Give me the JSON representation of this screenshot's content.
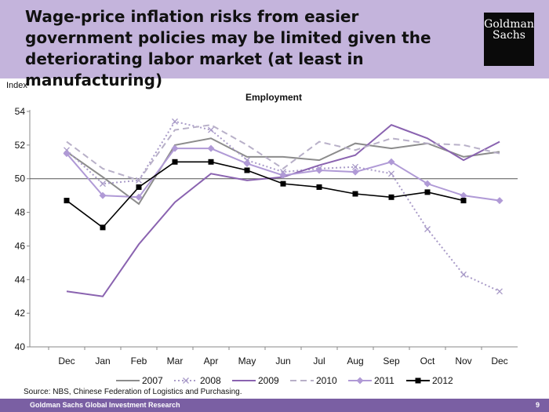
{
  "header": {
    "title": "Wage-price inflation risks from easier government policies may be limited given the deteriorating labor market (at least in manufacturing)",
    "logo_text": "Goldman Sachs"
  },
  "source": "Source: NBS, Chinese Federation of Logistics and Purchasing.",
  "footer": {
    "left": "Goldman Sachs Global Investment Research",
    "page": "9"
  },
  "colors": {
    "header_bg": "#c4b4dc",
    "footer_bg": "#7a5fa3"
  },
  "chart_data": {
    "type": "line",
    "title": "Employment",
    "ylabel": "Index",
    "xlabel": "",
    "ylim": [
      40,
      54
    ],
    "yticks": [
      40,
      42,
      44,
      46,
      48,
      50,
      52,
      54
    ],
    "reference_line": 50,
    "grid": false,
    "legend_position": "bottom",
    "categories": [
      "Dec",
      "Jan",
      "Feb",
      "Mar",
      "Apr",
      "May",
      "Jun",
      "Jul",
      "Aug",
      "Sep",
      "Oct",
      "Nov",
      "Dec"
    ],
    "series": [
      {
        "name": "2007",
        "color": "#8c8c8c",
        "dash": "solid",
        "marker": "none",
        "values": [
          51.6,
          50.1,
          48.5,
          52.0,
          52.4,
          51.3,
          51.3,
          51.1,
          52.1,
          51.8,
          52.1,
          51.3,
          51.6
        ]
      },
      {
        "name": "2008",
        "color": "#a99bc8",
        "dash": "dotted",
        "marker": "x",
        "values": [
          51.7,
          49.7,
          49.9,
          53.4,
          52.9,
          51.1,
          50.4,
          50.6,
          50.7,
          50.3,
          47.0,
          44.3,
          43.3
        ]
      },
      {
        "name": "2009",
        "color": "#8a63b0",
        "dash": "solid",
        "marker": "none",
        "values": [
          43.3,
          43.0,
          46.1,
          48.6,
          50.3,
          49.9,
          50.1,
          50.8,
          51.4,
          53.2,
          52.4,
          51.1,
          52.2
        ]
      },
      {
        "name": "2010",
        "color": "#b8b0c8",
        "dash": "dashed",
        "marker": "none",
        "values": [
          52.2,
          50.6,
          49.9,
          52.9,
          53.2,
          52.0,
          50.6,
          52.2,
          51.7,
          52.4,
          52.1,
          52.0,
          51.5
        ]
      },
      {
        "name": "2011",
        "color": "#b09ad6",
        "dash": "solid",
        "marker": "diamond",
        "values": [
          51.5,
          49.0,
          48.9,
          51.8,
          51.8,
          50.9,
          50.2,
          50.5,
          50.4,
          51.0,
          49.7,
          49.0,
          48.7
        ]
      },
      {
        "name": "2012",
        "color": "#000000",
        "dash": "solid",
        "marker": "square",
        "values": [
          48.7,
          47.1,
          49.5,
          51.0,
          51.0,
          50.5,
          49.7,
          49.5,
          49.1,
          48.9,
          49.2,
          48.7,
          null
        ]
      }
    ]
  }
}
